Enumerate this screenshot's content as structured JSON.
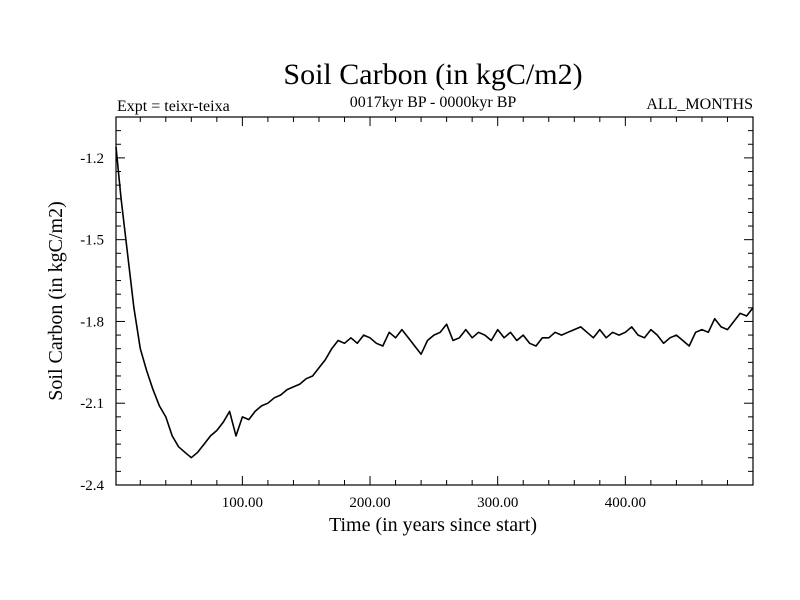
{
  "chart_data": {
    "type": "line",
    "title": "Soil Carbon (in kgC/m2)",
    "subtitle_left": "Expt = teixr-teixa",
    "subtitle_center": "0017kyr BP - 0000kyr BP",
    "subtitle_right": "ALL_MONTHS",
    "xlabel": "Time (in years since start)",
    "ylabel": "Soil Carbon (in kgC/m2)",
    "xlim": [
      1,
      500
    ],
    "ylim": [
      -2.4,
      -1.05
    ],
    "xticks": [
      100,
      200,
      300,
      400
    ],
    "xtick_labels": [
      "100.00",
      "200.00",
      "300.00",
      "400.00"
    ],
    "yticks": [
      -1.2,
      -1.5,
      -1.8,
      -2.1,
      -2.4
    ],
    "ytick_labels": [
      "-1.2",
      "-1.5",
      "-1.8",
      "-2.1",
      "-2.4"
    ],
    "grid": false,
    "series": [
      {
        "color": "#000000",
        "x": [
          1,
          5,
          10,
          15,
          20,
          25,
          30,
          35,
          40,
          45,
          50,
          55,
          60,
          65,
          70,
          75,
          80,
          85,
          90,
          95,
          100,
          105,
          110,
          115,
          120,
          125,
          130,
          135,
          140,
          145,
          150,
          155,
          160,
          165,
          170,
          175,
          180,
          185,
          190,
          195,
          200,
          205,
          210,
          215,
          220,
          225,
          230,
          235,
          240,
          245,
          250,
          255,
          260,
          265,
          270,
          275,
          280,
          285,
          290,
          295,
          300,
          305,
          310,
          315,
          320,
          325,
          330,
          335,
          340,
          345,
          350,
          355,
          360,
          365,
          370,
          375,
          380,
          385,
          390,
          395,
          400,
          405,
          410,
          415,
          420,
          425,
          430,
          435,
          440,
          445,
          450,
          455,
          460,
          465,
          470,
          475,
          480,
          485,
          490,
          495,
          500
        ],
        "y": [
          -1.16,
          -1.35,
          -1.55,
          -1.75,
          -1.9,
          -1.98,
          -2.05,
          -2.11,
          -2.15,
          -2.22,
          -2.26,
          -2.28,
          -2.3,
          -2.28,
          -2.25,
          -2.22,
          -2.2,
          -2.17,
          -2.13,
          -2.22,
          -2.15,
          -2.16,
          -2.13,
          -2.11,
          -2.1,
          -2.08,
          -2.07,
          -2.05,
          -2.04,
          -2.03,
          -2.01,
          -2.0,
          -1.97,
          -1.94,
          -1.9,
          -1.87,
          -1.88,
          -1.86,
          -1.88,
          -1.85,
          -1.86,
          -1.88,
          -1.89,
          -1.84,
          -1.86,
          -1.83,
          -1.86,
          -1.89,
          -1.92,
          -1.87,
          -1.85,
          -1.84,
          -1.81,
          -1.87,
          -1.86,
          -1.83,
          -1.86,
          -1.84,
          -1.85,
          -1.87,
          -1.83,
          -1.86,
          -1.84,
          -1.87,
          -1.85,
          -1.88,
          -1.89,
          -1.86,
          -1.86,
          -1.84,
          -1.85,
          -1.84,
          -1.83,
          -1.82,
          -1.84,
          -1.86,
          -1.83,
          -1.86,
          -1.84,
          -1.85,
          -1.84,
          -1.82,
          -1.85,
          -1.86,
          -1.83,
          -1.85,
          -1.88,
          -1.86,
          -1.85,
          -1.87,
          -1.89,
          -1.84,
          -1.83,
          -1.84,
          -1.79,
          -1.82,
          -1.83,
          -1.8,
          -1.77,
          -1.78,
          -1.75
        ]
      }
    ]
  }
}
